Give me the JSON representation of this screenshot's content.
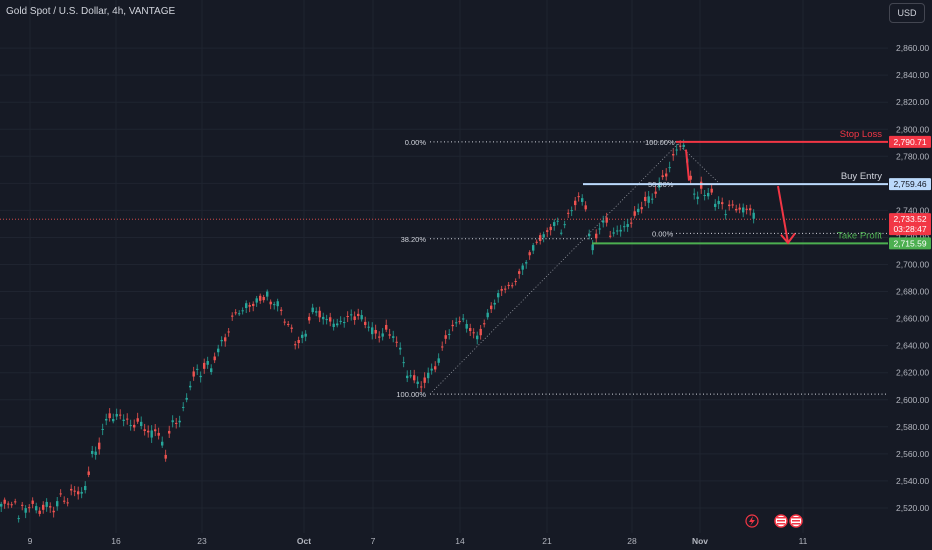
{
  "header": {
    "title": "Gold Spot / U.S. Dollar, 4h, VANTAGE",
    "currency_button": "USD"
  },
  "colors": {
    "background": "#161a25",
    "up_candle": "#26a69a",
    "down_candle": "#ef5350",
    "stop_loss": "#f23645",
    "buy_entry": "#bbd9fb",
    "take_profit": "#4caf50",
    "grid": "#1f2430"
  },
  "icons": [
    "lightning-icon",
    "us-flag-icon",
    "us-flag-icon"
  ],
  "chart_data": {
    "type": "candlestick",
    "symbol": "Gold Spot / U.S. Dollar",
    "timeframe": "4h",
    "ylim": [
      2505,
      2880
    ],
    "y_ticks": [
      2520,
      2540,
      2560,
      2580,
      2600,
      2620,
      2640,
      2660,
      2680,
      2700,
      2720,
      2740,
      2760,
      2780,
      2800,
      2820,
      2840,
      2860
    ],
    "x_ticks": [
      "9",
      "16",
      "23",
      "Oct",
      "7",
      "14",
      "21",
      "28",
      "Nov",
      "11"
    ],
    "price_path": [
      [
        0,
        2521
      ],
      [
        3,
        2526
      ],
      [
        5,
        2517
      ],
      [
        8,
        2528
      ],
      [
        11,
        2519
      ],
      [
        14,
        2524
      ],
      [
        17,
        2513
      ],
      [
        20,
        2522
      ],
      [
        25,
        2518
      ],
      [
        30,
        2525
      ],
      [
        38,
        2516
      ],
      [
        45,
        2523
      ],
      [
        52,
        2518
      ],
      [
        60,
        2530
      ],
      [
        66,
        2523
      ],
      [
        72,
        2535
      ],
      [
        80,
        2529
      ],
      [
        86,
        2540
      ],
      [
        92,
        2565
      ],
      [
        96,
        2558
      ],
      [
        102,
        2580
      ],
      [
        108,
        2588
      ],
      [
        114,
        2586
      ],
      [
        118,
        2590
      ],
      [
        124,
        2586
      ],
      [
        130,
        2580
      ],
      [
        138,
        2584
      ],
      [
        144,
        2578
      ],
      [
        150,
        2575
      ],
      [
        155,
        2578
      ],
      [
        160,
        2572
      ],
      [
        164,
        2553
      ],
      [
        168,
        2577
      ],
      [
        172,
        2585
      ],
      [
        176,
        2580
      ],
      [
        182,
        2595
      ],
      [
        186,
        2600
      ],
      [
        190,
        2615
      ],
      [
        195,
        2622
      ],
      [
        200,
        2617
      ],
      [
        205,
        2630
      ],
      [
        210,
        2622
      ],
      [
        215,
        2635
      ],
      [
        220,
        2642
      ],
      [
        225,
        2645
      ],
      [
        230,
        2658
      ],
      [
        236,
        2667
      ],
      [
        241,
        2664
      ],
      [
        246,
        2672
      ],
      [
        252,
        2669
      ],
      [
        257,
        2675
      ],
      [
        262,
        2674
      ],
      [
        266,
        2678
      ],
      [
        270,
        2670
      ],
      [
        275,
        2674
      ],
      [
        280,
        2665
      ],
      [
        285,
        2657
      ],
      [
        290,
        2652
      ],
      [
        295,
        2640
      ],
      [
        300,
        2645
      ],
      [
        305,
        2650
      ],
      [
        310,
        2667
      ],
      [
        315,
        2665
      ],
      [
        320,
        2662
      ],
      [
        325,
        2658
      ],
      [
        330,
        2660
      ],
      [
        335,
        2653
      ],
      [
        340,
        2660
      ],
      [
        345,
        2658
      ],
      [
        350,
        2663
      ],
      [
        355,
        2660
      ],
      [
        360,
        2662
      ],
      [
        365,
        2656
      ],
      [
        370,
        2652
      ],
      [
        375,
        2650
      ],
      [
        380,
        2645
      ],
      [
        385,
        2652
      ],
      [
        390,
        2648
      ],
      [
        395,
        2642
      ],
      [
        400,
        2640
      ],
      [
        405,
        2615
      ],
      [
        410,
        2620
      ],
      [
        415,
        2612
      ],
      [
        420,
        2610
      ],
      [
        425,
        2616
      ],
      [
        430,
        2622
      ],
      [
        435,
        2625
      ],
      [
        440,
        2635
      ],
      [
        445,
        2648
      ],
      [
        450,
        2650
      ],
      [
        455,
        2658
      ],
      [
        460,
        2660
      ],
      [
        465,
        2656
      ],
      [
        470,
        2652
      ],
      [
        475,
        2645
      ],
      [
        480,
        2650
      ],
      [
        485,
        2660
      ],
      [
        490,
        2668
      ],
      [
        495,
        2675
      ],
      [
        500,
        2680
      ],
      [
        505,
        2685
      ],
      [
        510,
        2681
      ],
      [
        515,
        2690
      ],
      [
        520,
        2695
      ],
      [
        525,
        2703
      ],
      [
        530,
        2710
      ],
      [
        535,
        2716
      ],
      [
        540,
        2720
      ],
      [
        545,
        2722
      ],
      [
        550,
        2728
      ],
      [
        555,
        2733
      ],
      [
        560,
        2725
      ],
      [
        565,
        2733
      ],
      [
        570,
        2740
      ],
      [
        575,
        2747
      ],
      [
        580,
        2750
      ],
      [
        585,
        2742
      ],
      [
        588,
        2722
      ],
      [
        592,
        2712
      ],
      [
        596,
        2724
      ],
      [
        600,
        2729
      ],
      [
        605,
        2733
      ],
      [
        610,
        2720
      ],
      [
        615,
        2724
      ],
      [
        620,
        2728
      ],
      [
        625,
        2727
      ],
      [
        630,
        2732
      ],
      [
        635,
        2738
      ],
      [
        640,
        2741
      ],
      [
        645,
        2750
      ],
      [
        650,
        2747
      ],
      [
        655,
        2755
      ],
      [
        660,
        2762
      ],
      [
        665,
        2767
      ],
      [
        670,
        2774
      ],
      [
        675,
        2786
      ],
      [
        680,
        2789
      ],
      [
        684,
        2785
      ],
      [
        688,
        2772
      ],
      [
        692,
        2752
      ],
      [
        696,
        2748
      ],
      [
        700,
        2758
      ],
      [
        705,
        2748
      ],
      [
        710,
        2756
      ],
      [
        715,
        2743
      ],
      [
        720,
        2747
      ],
      [
        725,
        2738
      ],
      [
        730,
        2744
      ],
      [
        735,
        2742
      ],
      [
        740,
        2739
      ],
      [
        745,
        2743
      ],
      [
        750,
        2740
      ],
      [
        754,
        2734
      ]
    ],
    "annotations": {
      "stop_loss": {
        "label": "Stop Loss",
        "price": "2,790.71",
        "value": 2790.71
      },
      "buy_entry": {
        "label": "Buy Entry",
        "price": "2,759.46",
        "value": 2759.46
      },
      "take_profit": {
        "label": "Take Profit",
        "price": "2,715.59",
        "value": 2715.59
      },
      "current_price": {
        "price": "2,733.52",
        "countdown": "03:28:47",
        "value": 2733.52
      }
    },
    "fib_labels": {
      "top_left": "0.00%",
      "fib_382": "38.20%",
      "bottom": "100.00%",
      "top_right": "100.00%",
      "mid_right": "50.00%",
      "low_right": "0.00%"
    }
  }
}
